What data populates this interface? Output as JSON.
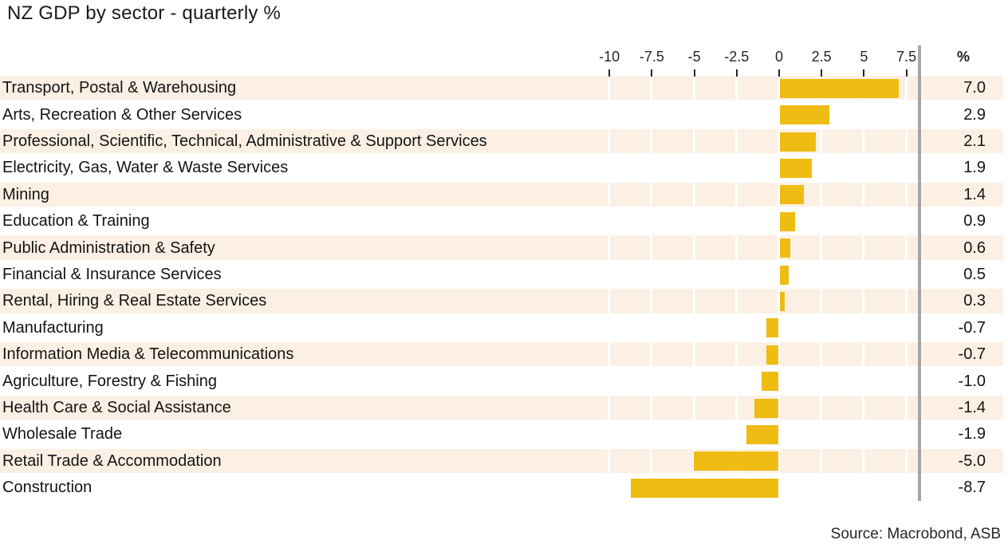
{
  "title": "NZ GDP by sector - quarterly %",
  "value_column_header": "%",
  "source": "Source: Macrobond, ASB",
  "chart_data": {
    "type": "bar",
    "orientation": "horizontal",
    "title": "NZ GDP by sector - quarterly %",
    "xlabel": "",
    "ylabel": "",
    "unit": "%",
    "categories": [
      "Transport, Postal & Warehousing",
      "Arts, Recreation & Other Services",
      "Professional, Scientific, Technical, Administrative & Support Services",
      "Electricity, Gas, Water & Waste Services",
      "Mining",
      "Education & Training",
      "Public Administration & Safety",
      "Financial & Insurance Services",
      "Rental, Hiring & Real Estate Services",
      "Manufacturing",
      "Information Media & Telecommunications",
      "Agriculture, Forestry & Fishing",
      "Health Care & Social Assistance",
      "Wholesale Trade",
      "Retail Trade & Accommodation",
      "Construction"
    ],
    "values": [
      7.0,
      2.9,
      2.1,
      1.9,
      1.4,
      0.9,
      0.6,
      0.5,
      0.3,
      -0.7,
      -0.7,
      -1.0,
      -1.4,
      -1.9,
      -5.0,
      -8.7
    ],
    "value_labels": [
      "7.0",
      "2.9",
      "2.1",
      "1.9",
      "1.4",
      "0.9",
      "0.6",
      "0.5",
      "0.3",
      "-0.7",
      "-0.7",
      "-1.0",
      "-1.4",
      "-1.9",
      "-5.0",
      "-8.7"
    ],
    "axis_ticks": [
      -10,
      -7.5,
      -5,
      -2.5,
      0,
      2.5,
      5,
      7.5
    ],
    "tick_labels": [
      "-10",
      "-7.5",
      "-5",
      "-2.5",
      "0",
      "2.5",
      "5",
      "7.5"
    ],
    "xlim": [
      -10.6,
      8.3
    ],
    "grid": "white vertical gridlines at axis ticks over shaded row bands",
    "legend": "none",
    "bar_color": "#efbc13",
    "band_color": "#fcf0e5",
    "separator_color": "#a6a6a6",
    "row_banding": "alternating, first row shaded"
  }
}
